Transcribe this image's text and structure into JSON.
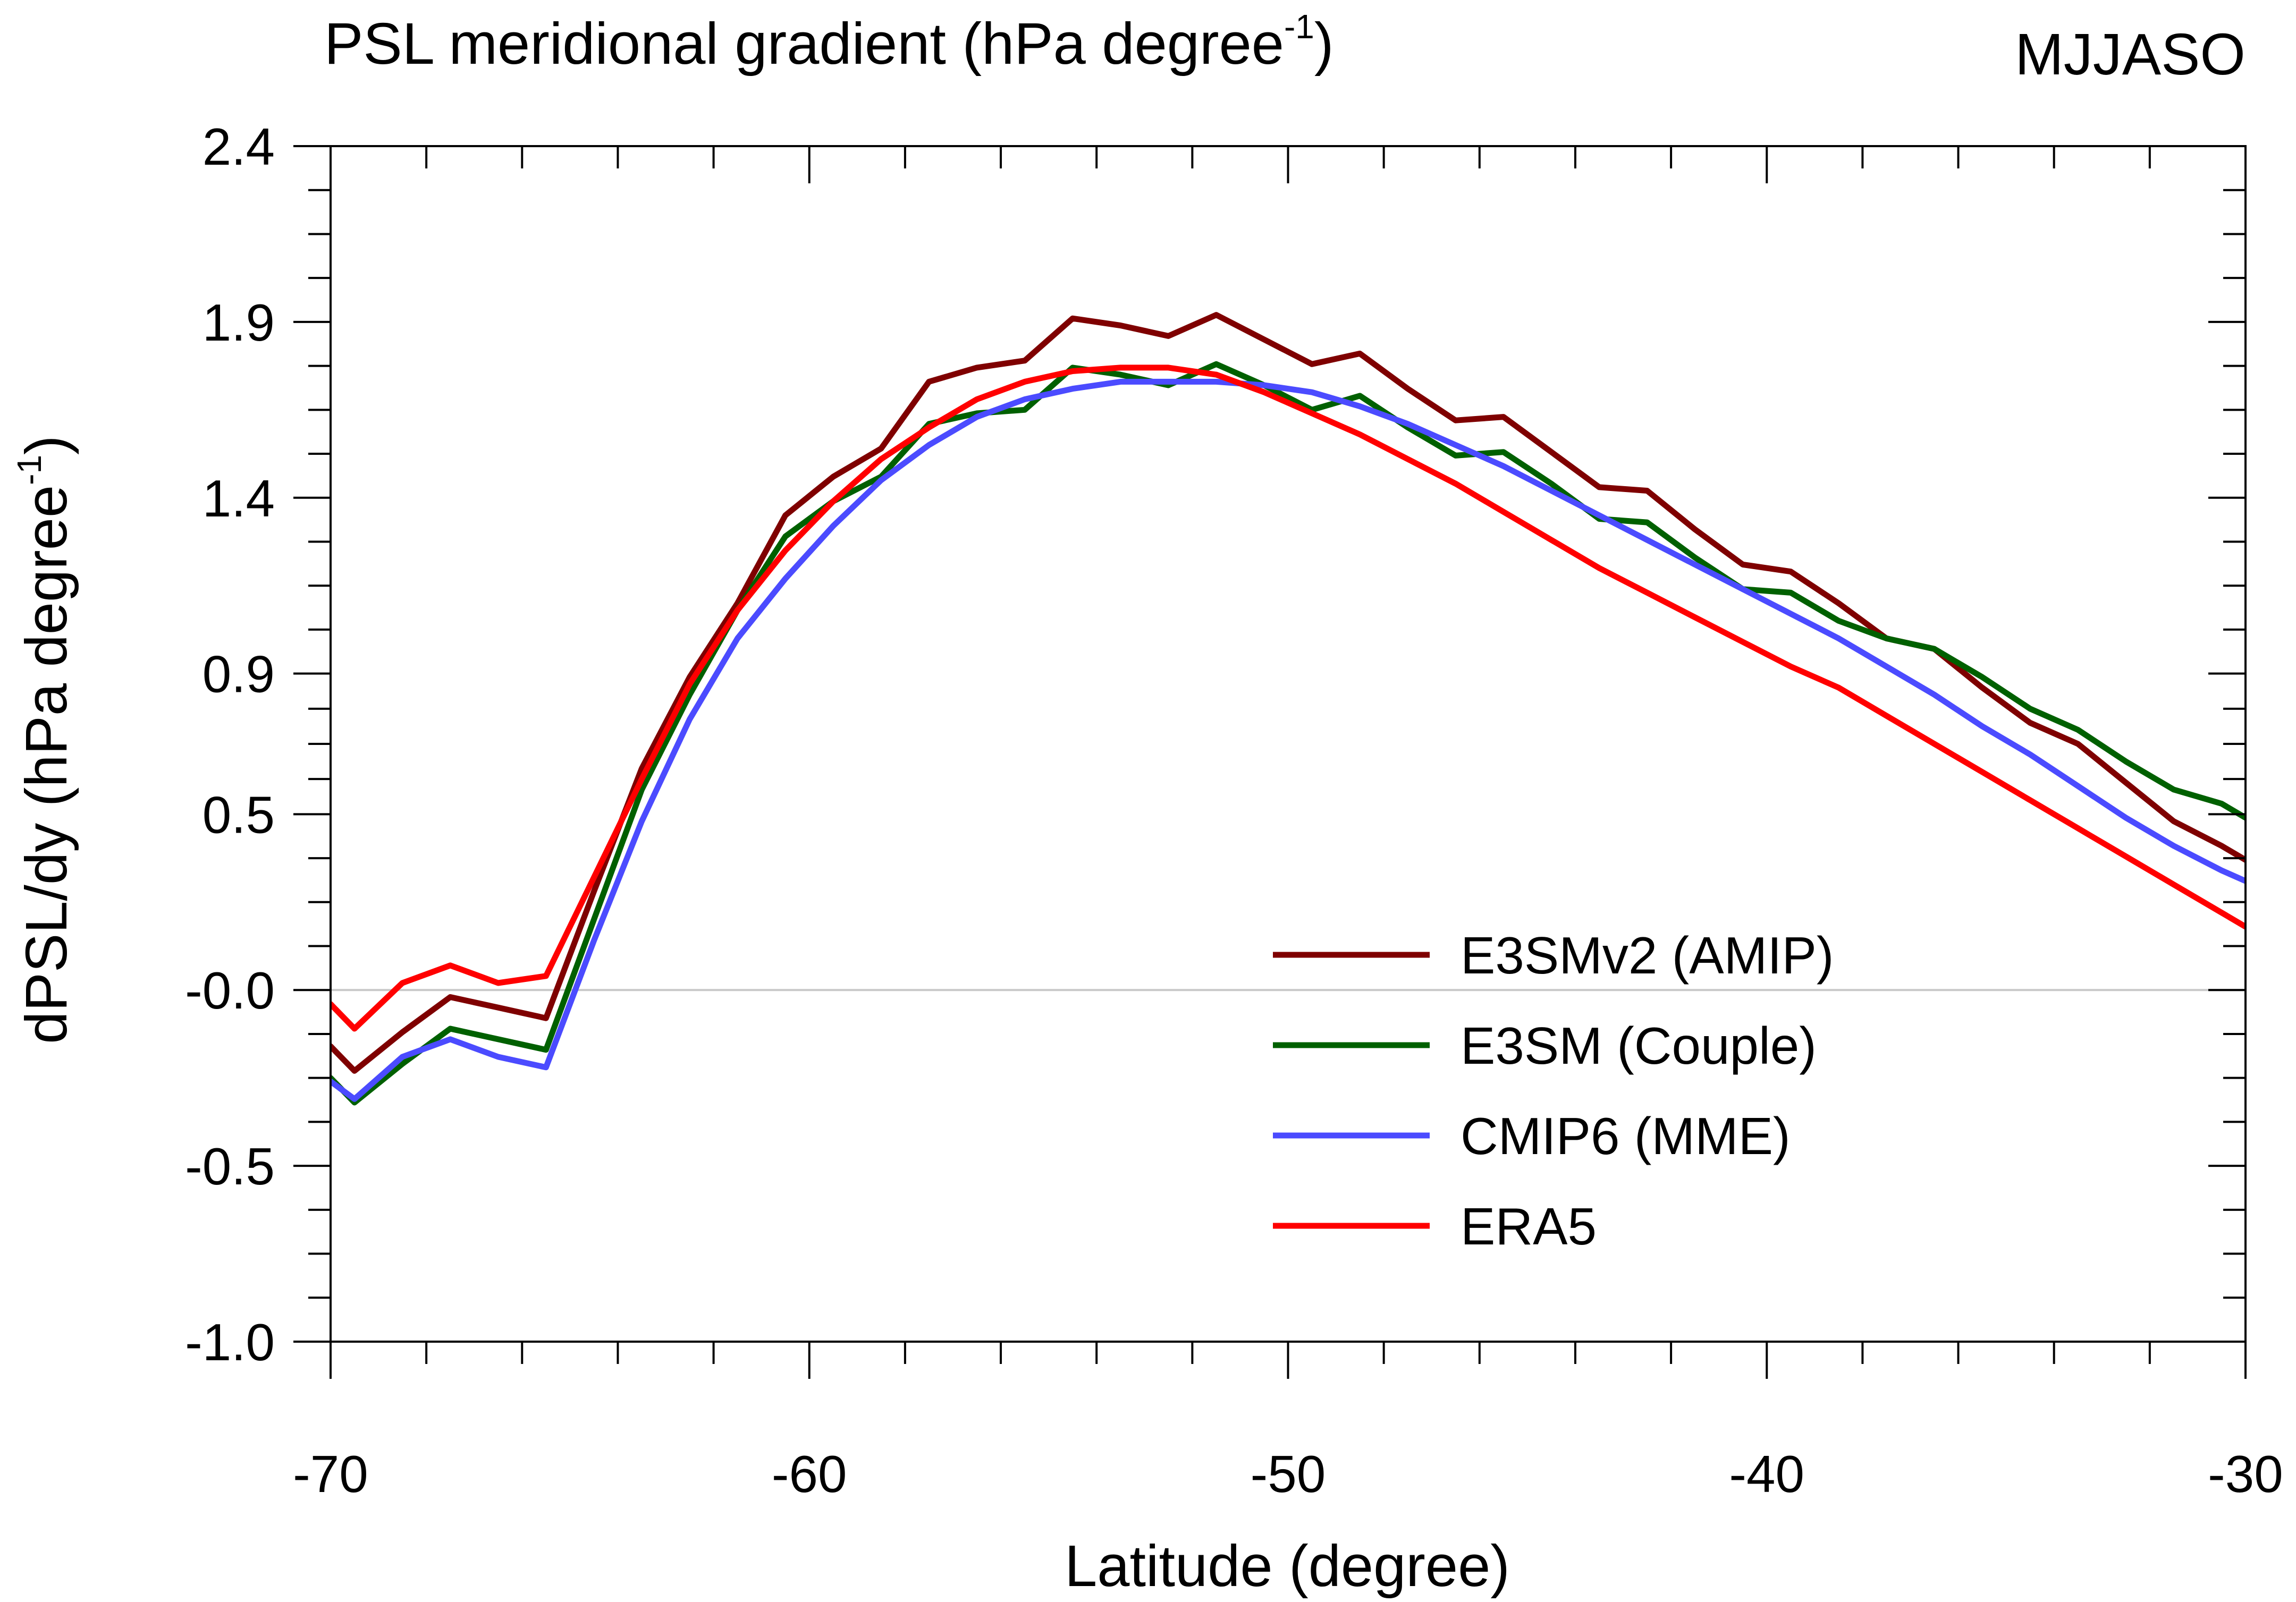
{
  "chart_data": {
    "type": "line",
    "title": "PSL meridional gradient (hPa degree",
    "title_superscript": "-1",
    "title_suffix": ")",
    "season_label": "MJJASO",
    "xlabel": "Latitude (degree)",
    "ylabel": "dPSL/dy (hPa degree",
    "ylabel_superscript": "-1",
    "ylabel_suffix": ")",
    "xlim": [
      -70,
      -30
    ],
    "ylim": [
      -1.0,
      2.4
    ],
    "xticks": [
      -70,
      -60,
      -50,
      -40,
      -30
    ],
    "xtick_labels": [
      "-70",
      "-60",
      "-50",
      "-40",
      "-30"
    ],
    "yticks": [
      -1.0,
      -0.5,
      0.0,
      0.5,
      0.9,
      1.4,
      1.9,
      2.4
    ],
    "ytick_labels": [
      "-1.0",
      "-0.5",
      "-0.0",
      "0.5",
      "0.9",
      "1.4",
      "1.9",
      "2.4"
    ],
    "zero_line": true,
    "legend_position": "bottom-right",
    "x": [
      -70,
      -69.5,
      -68.5,
      -67.5,
      -66.5,
      -65.5,
      -64.5,
      -63.5,
      -62.5,
      -61.5,
      -60.5,
      -59.5,
      -58.5,
      -57.5,
      -56.5,
      -55.5,
      -54.5,
      -53.5,
      -52.5,
      -51.5,
      -50.5,
      -49.5,
      -48.5,
      -47.5,
      -46.5,
      -45.5,
      -44.5,
      -43.5,
      -42.5,
      -41.5,
      -40.5,
      -39.5,
      -38.5,
      -37.5,
      -36.5,
      -35.5,
      -34.5,
      -33.5,
      -32.5,
      -31.5,
      -30.5,
      -30
    ],
    "series": [
      {
        "name": "E3SMv2 (AMIP)",
        "color": "#7f0000",
        "values": [
          -0.16,
          -0.23,
          -0.12,
          -0.02,
          -0.05,
          -0.08,
          0.28,
          0.63,
          0.89,
          1.1,
          1.35,
          1.46,
          1.54,
          1.73,
          1.77,
          1.79,
          1.91,
          1.89,
          1.86,
          1.92,
          1.85,
          1.78,
          1.81,
          1.71,
          1.62,
          1.63,
          1.53,
          1.43,
          1.42,
          1.31,
          1.21,
          1.19,
          1.1,
          1.0,
          0.97,
          0.86,
          0.76,
          0.7,
          0.59,
          0.48,
          0.41,
          0.37
        ]
      },
      {
        "name": "E3SM (Couple)",
        "color": "#006000",
        "values": [
          -0.25,
          -0.32,
          -0.21,
          -0.11,
          -0.14,
          -0.17,
          0.2,
          0.57,
          0.84,
          1.08,
          1.29,
          1.39,
          1.46,
          1.61,
          1.64,
          1.65,
          1.77,
          1.75,
          1.72,
          1.78,
          1.72,
          1.65,
          1.69,
          1.6,
          1.52,
          1.53,
          1.44,
          1.34,
          1.33,
          1.23,
          1.14,
          1.13,
          1.05,
          1.0,
          0.97,
          0.89,
          0.8,
          0.74,
          0.65,
          0.57,
          0.53,
          0.49
        ]
      },
      {
        "name": "CMIP6 (MME)",
        "color": "#4b4bff",
        "values": [
          -0.26,
          -0.31,
          -0.19,
          -0.14,
          -0.19,
          -0.22,
          0.14,
          0.48,
          0.77,
          1.0,
          1.17,
          1.32,
          1.45,
          1.55,
          1.63,
          1.68,
          1.71,
          1.73,
          1.73,
          1.73,
          1.72,
          1.7,
          1.66,
          1.61,
          1.55,
          1.49,
          1.42,
          1.35,
          1.28,
          1.21,
          1.14,
          1.07,
          1.0,
          0.92,
          0.84,
          0.75,
          0.67,
          0.58,
          0.49,
          0.41,
          0.34,
          0.31
        ]
      },
      {
        "name": "ERA5",
        "color": "#ff0000",
        "values": [
          -0.04,
          -0.11,
          0.02,
          0.07,
          0.02,
          0.04,
          0.32,
          0.6,
          0.87,
          1.08,
          1.25,
          1.39,
          1.51,
          1.6,
          1.68,
          1.73,
          1.76,
          1.77,
          1.77,
          1.75,
          1.7,
          1.64,
          1.58,
          1.51,
          1.44,
          1.36,
          1.28,
          1.2,
          1.13,
          1.06,
          0.99,
          0.92,
          0.86,
          0.78,
          0.7,
          0.62,
          0.54,
          0.46,
          0.38,
          0.3,
          0.22,
          0.18
        ]
      }
    ]
  }
}
